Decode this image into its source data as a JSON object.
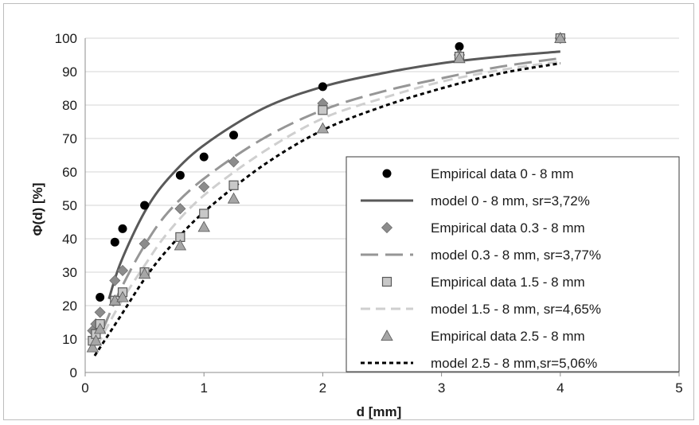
{
  "chart_data": {
    "type": "scatter",
    "xlabel": "d [mm]",
    "ylabel": "Φ(d) [%]",
    "xlim": [
      0,
      5
    ],
    "ylim": [
      0,
      100
    ],
    "xticks": [
      0,
      1,
      2,
      3,
      4,
      5
    ],
    "yticks": [
      0,
      10,
      20,
      30,
      40,
      50,
      60,
      70,
      80,
      90,
      100
    ],
    "grid": "horizontal",
    "legend_position": "center-right",
    "series": [
      {
        "name": "Empirical data 0 - 8 mm",
        "kind": "points",
        "marker": "circle",
        "color": "#000000",
        "x": [
          0.125,
          0.25,
          0.315,
          0.5,
          0.8,
          1.0,
          1.25,
          2.0,
          3.15,
          4.0
        ],
        "y": [
          22.5,
          39,
          43,
          50,
          59,
          64.5,
          71,
          85.5,
          97.5,
          100
        ]
      },
      {
        "name": "model 0 - 8 mm, sr=3,72%",
        "kind": "line",
        "dash": "solid",
        "color": "#595959",
        "x": [
          0.2,
          0.3,
          0.5,
          0.7,
          1.0,
          1.5,
          2.0,
          2.5,
          3.0,
          3.5,
          4.0
        ],
        "y": [
          22,
          33,
          48,
          58,
          68,
          79,
          85.5,
          89.5,
          92.5,
          94.5,
          96
        ]
      },
      {
        "name": "Empirical data 0.3 - 8 mm",
        "kind": "points",
        "marker": "diamond",
        "color": "#8c8c8c",
        "x": [
          0.063,
          0.09,
          0.125,
          0.25,
          0.315,
          0.5,
          0.8,
          1.0,
          1.25,
          2.0,
          3.15,
          4.0
        ],
        "y": [
          12.5,
          14.5,
          18,
          27.5,
          30.5,
          38.5,
          49,
          55.5,
          63,
          80.5,
          95,
          100
        ]
      },
      {
        "name": "model 0.3 - 8 mm, sr=3,77%",
        "kind": "line",
        "dash": "long",
        "color": "#969696",
        "x": [
          0.15,
          0.3,
          0.5,
          0.7,
          1.0,
          1.5,
          2.0,
          2.5,
          3.0,
          3.5,
          4.0
        ],
        "y": [
          13,
          25,
          38,
          48,
          58,
          70,
          78.5,
          84,
          88,
          91.5,
          94
        ]
      },
      {
        "name": "Empirical data 1.5 - 8 mm",
        "kind": "points",
        "marker": "square",
        "color": "#c8c8c8",
        "x": [
          0.063,
          0.09,
          0.125,
          0.25,
          0.315,
          0.5,
          0.8,
          1.0,
          1.25,
          2.0,
          3.15,
          4.0
        ],
        "y": [
          9.5,
          11.5,
          14.5,
          21.5,
          24,
          30,
          40.5,
          47.5,
          56,
          78.5,
          94.5,
          100
        ]
      },
      {
        "name": "model 1.5 - 8 mm, sr=4,65%",
        "kind": "line",
        "dash": "medium",
        "color": "#cfcfcf",
        "x": [
          0.1,
          0.3,
          0.5,
          0.7,
          1.0,
          1.5,
          2.0,
          2.5,
          3.0,
          3.5,
          4.0
        ],
        "y": [
          8,
          21,
          32,
          42,
          53,
          66,
          76,
          82,
          87,
          90.5,
          93
        ]
      },
      {
        "name": "Empirical data 2.5 - 8 mm",
        "kind": "points",
        "marker": "triangle",
        "color": "#a6a6a6",
        "x": [
          0.063,
          0.09,
          0.125,
          0.25,
          0.315,
          0.5,
          0.8,
          1.0,
          1.25,
          2.0,
          3.15,
          4.0
        ],
        "y": [
          7.5,
          9.5,
          13,
          21.5,
          22.5,
          29.5,
          38,
          43.5,
          52,
          73,
          94,
          100
        ]
      },
      {
        "name": "model 2.5 - 8 mm,sr=5,06%",
        "kind": "line",
        "dash": "short",
        "color": "#000000",
        "x": [
          0.08,
          0.3,
          0.5,
          0.7,
          1.0,
          1.5,
          2.0,
          2.5,
          3.0,
          3.5,
          4.0
        ],
        "y": [
          5,
          17,
          28,
          37,
          48,
          62,
          72.5,
          79.5,
          85,
          89.5,
          92.5
        ]
      }
    ]
  }
}
